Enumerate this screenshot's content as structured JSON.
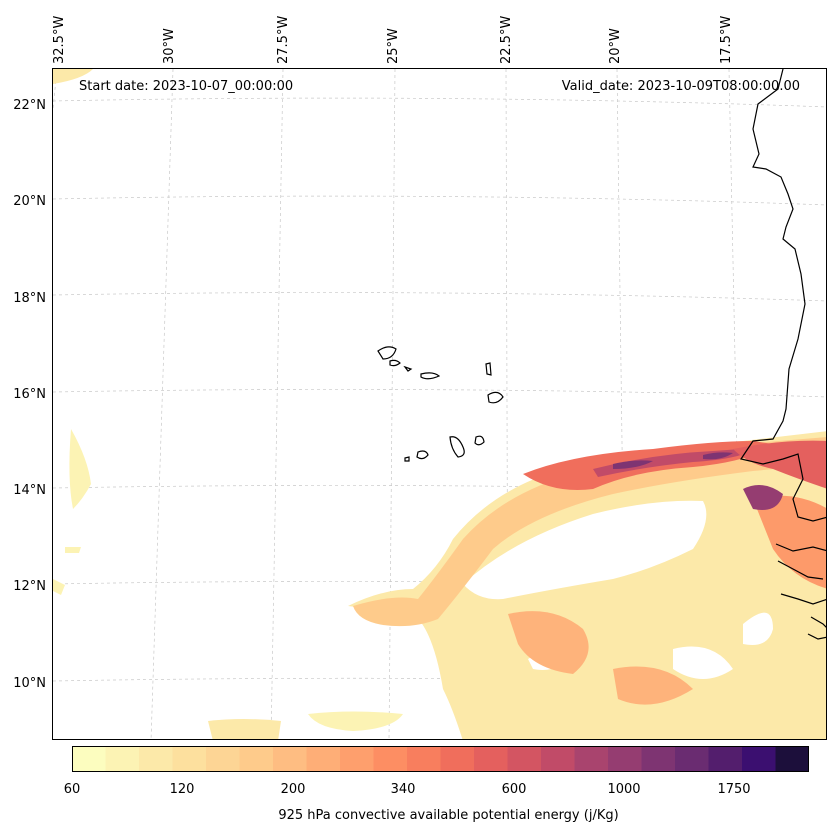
{
  "map": {
    "start_date": "Start date: 2023-10-07_00:00:00",
    "valid_date": "Valid_date: 2023-10-09T08:00:00.00",
    "lon_labels": [
      "32.5°W",
      "30°W",
      "27.5°W",
      "25°W",
      "22.5°W",
      "20°W",
      "17.5°W"
    ],
    "lat_labels": [
      "22°N",
      "20°N",
      "18°N",
      "16°N",
      "14°N",
      "12°N",
      "10°N"
    ],
    "gridlines": true,
    "islands": "Cape Verde",
    "coastline": "West Africa (Senegal, Gambia, Guinea-Bissau)"
  },
  "colorbar": {
    "label": "925 hPa convective available potential energy (j/Kg)",
    "tick_labels": [
      "60",
      "120",
      "200",
      "340",
      "600",
      "1000",
      "1750"
    ],
    "colors": [
      "#fcfdbf",
      "#fcf3b4",
      "#fce9a9",
      "#fde09e",
      "#fdd595",
      "#fecb8b",
      "#febd82",
      "#feae77",
      "#fe9f6d",
      "#fd8e63",
      "#f87e5e",
      "#f06e5c",
      "#e4605e",
      "#d35562",
      "#c14b68",
      "#a9446e",
      "#953d71",
      "#7e3472",
      "#6a2c71",
      "#531e6d",
      "#3b0f70",
      "#1c0f3b"
    ],
    "colormap": "magma_r"
  }
}
